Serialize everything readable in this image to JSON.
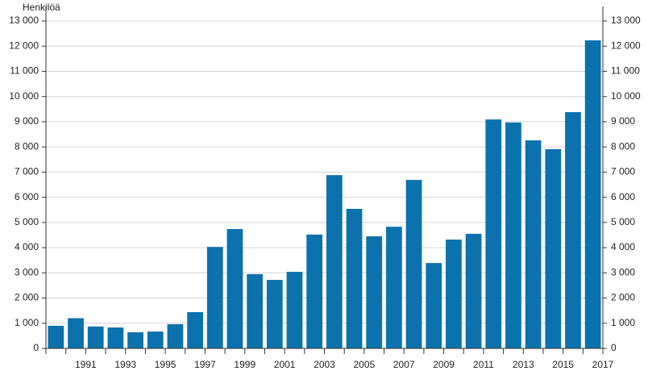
{
  "chart_data": {
    "type": "bar",
    "y_label": "Henkilöä",
    "categories": [
      null,
      "1991",
      null,
      "1993",
      null,
      "1995",
      null,
      "1997",
      null,
      "1999",
      null,
      "2001",
      null,
      "2003",
      null,
      "2005",
      null,
      "2007",
      null,
      "2009",
      null,
      "2011",
      null,
      "2013",
      null,
      "2015",
      null,
      "2017"
    ],
    "values": [
      900,
      1200,
      870,
      830,
      640,
      670,
      960,
      1440,
      4030,
      4740,
      2950,
      2720,
      3040,
      4520,
      6880,
      5540,
      4450,
      4830,
      6690,
      3390,
      4320,
      4550,
      9090,
      8970,
      8260,
      7910,
      9380,
      12230
    ],
    "color": "#0b72ad",
    "ylim": [
      0,
      13000
    ],
    "yticks": [
      0,
      {
        "value": 1000,
        "label": "1 000"
      },
      {
        "value": 2000,
        "label": "2 000"
      },
      {
        "value": 3000,
        "label": "3 000"
      },
      {
        "value": 4000,
        "label": "4 000"
      },
      {
        "value": 5000,
        "label": "5 000"
      },
      {
        "value": 6000,
        "label": "6 000"
      },
      {
        "value": 7000,
        "label": "7 000"
      },
      {
        "value": 8000,
        "label": "8 000"
      },
      {
        "value": 9000,
        "label": "9 000"
      },
      {
        "value": 10000,
        "label": "10 000"
      },
      {
        "value": 11000,
        "label": "11 000"
      },
      {
        "value": 12000,
        "label": "12 000"
      },
      {
        "value": 13000,
        "label": "13 000"
      }
    ],
    "grid": true
  }
}
